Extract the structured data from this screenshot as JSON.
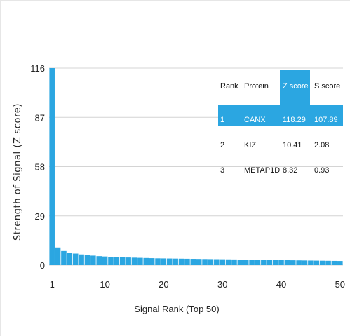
{
  "chart_data": {
    "type": "bar",
    "xlabel": "Signal Rank (Top 50)",
    "ylabel": "Strength of Signal (Z score)",
    "ylim": [
      0,
      116
    ],
    "xlim": [
      1,
      50
    ],
    "yticks": [
      0,
      29,
      58,
      87,
      116
    ],
    "xticks": [
      1,
      10,
      20,
      30,
      40,
      50
    ],
    "grid": true,
    "bar_color": "#2ba6e1",
    "x": [
      1,
      2,
      3,
      4,
      5,
      6,
      7,
      8,
      9,
      10,
      11,
      12,
      13,
      14,
      15,
      16,
      17,
      18,
      19,
      20,
      21,
      22,
      23,
      24,
      25,
      26,
      27,
      28,
      29,
      30,
      31,
      32,
      33,
      34,
      35,
      36,
      37,
      38,
      39,
      40,
      41,
      42,
      43,
      44,
      45,
      46,
      47,
      48,
      49,
      50
    ],
    "values": [
      118.29,
      10.41,
      8.32,
      7.4,
      6.8,
      6.3,
      5.9,
      5.6,
      5.3,
      5.1,
      4.9,
      4.7,
      4.6,
      4.5,
      4.4,
      4.3,
      4.2,
      4.1,
      4.0,
      3.95,
      3.9,
      3.85,
      3.8,
      3.75,
      3.7,
      3.65,
      3.6,
      3.55,
      3.5,
      3.45,
      3.4,
      3.35,
      3.3,
      3.25,
      3.2,
      3.15,
      3.1,
      3.05,
      3.0,
      2.95,
      2.9,
      2.85,
      2.8,
      2.75,
      2.7,
      2.65,
      2.6,
      2.55,
      2.5,
      2.45
    ]
  },
  "table": {
    "headers": [
      "Rank",
      "Protein",
      "Z score",
      "S score"
    ],
    "rows": [
      [
        "1",
        "CANX",
        "118.29",
        "107.89"
      ],
      [
        "2",
        "KIZ",
        "10.41",
        "2.08"
      ],
      [
        "3",
        "METAP1D",
        "8.32",
        "0.93"
      ]
    ],
    "highlight_color": "#2ba6e1"
  }
}
